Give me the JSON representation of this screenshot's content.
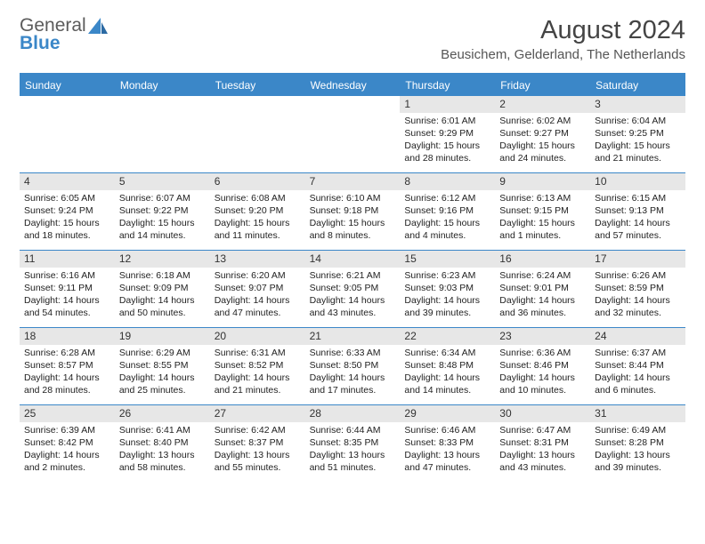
{
  "brand": {
    "text1": "General",
    "text2": "Blue"
  },
  "title": "August 2024",
  "location": "Beusichem, Gelderland, The Netherlands",
  "colors": {
    "accent": "#3b87c8",
    "grayBg": "#e7e7e7",
    "text": "#222222",
    "headerText": "#444444"
  },
  "dayNames": [
    "Sunday",
    "Monday",
    "Tuesday",
    "Wednesday",
    "Thursday",
    "Friday",
    "Saturday"
  ],
  "weeks": [
    [
      {
        "num": "",
        "sunrise": "",
        "sunset": "",
        "daylight": ""
      },
      {
        "num": "",
        "sunrise": "",
        "sunset": "",
        "daylight": ""
      },
      {
        "num": "",
        "sunrise": "",
        "sunset": "",
        "daylight": ""
      },
      {
        "num": "",
        "sunrise": "",
        "sunset": "",
        "daylight": ""
      },
      {
        "num": "1",
        "sunrise": "Sunrise: 6:01 AM",
        "sunset": "Sunset: 9:29 PM",
        "daylight": "Daylight: 15 hours and 28 minutes."
      },
      {
        "num": "2",
        "sunrise": "Sunrise: 6:02 AM",
        "sunset": "Sunset: 9:27 PM",
        "daylight": "Daylight: 15 hours and 24 minutes."
      },
      {
        "num": "3",
        "sunrise": "Sunrise: 6:04 AM",
        "sunset": "Sunset: 9:25 PM",
        "daylight": "Daylight: 15 hours and 21 minutes."
      }
    ],
    [
      {
        "num": "4",
        "sunrise": "Sunrise: 6:05 AM",
        "sunset": "Sunset: 9:24 PM",
        "daylight": "Daylight: 15 hours and 18 minutes."
      },
      {
        "num": "5",
        "sunrise": "Sunrise: 6:07 AM",
        "sunset": "Sunset: 9:22 PM",
        "daylight": "Daylight: 15 hours and 14 minutes."
      },
      {
        "num": "6",
        "sunrise": "Sunrise: 6:08 AM",
        "sunset": "Sunset: 9:20 PM",
        "daylight": "Daylight: 15 hours and 11 minutes."
      },
      {
        "num": "7",
        "sunrise": "Sunrise: 6:10 AM",
        "sunset": "Sunset: 9:18 PM",
        "daylight": "Daylight: 15 hours and 8 minutes."
      },
      {
        "num": "8",
        "sunrise": "Sunrise: 6:12 AM",
        "sunset": "Sunset: 9:16 PM",
        "daylight": "Daylight: 15 hours and 4 minutes."
      },
      {
        "num": "9",
        "sunrise": "Sunrise: 6:13 AM",
        "sunset": "Sunset: 9:15 PM",
        "daylight": "Daylight: 15 hours and 1 minutes."
      },
      {
        "num": "10",
        "sunrise": "Sunrise: 6:15 AM",
        "sunset": "Sunset: 9:13 PM",
        "daylight": "Daylight: 14 hours and 57 minutes."
      }
    ],
    [
      {
        "num": "11",
        "sunrise": "Sunrise: 6:16 AM",
        "sunset": "Sunset: 9:11 PM",
        "daylight": "Daylight: 14 hours and 54 minutes."
      },
      {
        "num": "12",
        "sunrise": "Sunrise: 6:18 AM",
        "sunset": "Sunset: 9:09 PM",
        "daylight": "Daylight: 14 hours and 50 minutes."
      },
      {
        "num": "13",
        "sunrise": "Sunrise: 6:20 AM",
        "sunset": "Sunset: 9:07 PM",
        "daylight": "Daylight: 14 hours and 47 minutes."
      },
      {
        "num": "14",
        "sunrise": "Sunrise: 6:21 AM",
        "sunset": "Sunset: 9:05 PM",
        "daylight": "Daylight: 14 hours and 43 minutes."
      },
      {
        "num": "15",
        "sunrise": "Sunrise: 6:23 AM",
        "sunset": "Sunset: 9:03 PM",
        "daylight": "Daylight: 14 hours and 39 minutes."
      },
      {
        "num": "16",
        "sunrise": "Sunrise: 6:24 AM",
        "sunset": "Sunset: 9:01 PM",
        "daylight": "Daylight: 14 hours and 36 minutes."
      },
      {
        "num": "17",
        "sunrise": "Sunrise: 6:26 AM",
        "sunset": "Sunset: 8:59 PM",
        "daylight": "Daylight: 14 hours and 32 minutes."
      }
    ],
    [
      {
        "num": "18",
        "sunrise": "Sunrise: 6:28 AM",
        "sunset": "Sunset: 8:57 PM",
        "daylight": "Daylight: 14 hours and 28 minutes."
      },
      {
        "num": "19",
        "sunrise": "Sunrise: 6:29 AM",
        "sunset": "Sunset: 8:55 PM",
        "daylight": "Daylight: 14 hours and 25 minutes."
      },
      {
        "num": "20",
        "sunrise": "Sunrise: 6:31 AM",
        "sunset": "Sunset: 8:52 PM",
        "daylight": "Daylight: 14 hours and 21 minutes."
      },
      {
        "num": "21",
        "sunrise": "Sunrise: 6:33 AM",
        "sunset": "Sunset: 8:50 PM",
        "daylight": "Daylight: 14 hours and 17 minutes."
      },
      {
        "num": "22",
        "sunrise": "Sunrise: 6:34 AM",
        "sunset": "Sunset: 8:48 PM",
        "daylight": "Daylight: 14 hours and 14 minutes."
      },
      {
        "num": "23",
        "sunrise": "Sunrise: 6:36 AM",
        "sunset": "Sunset: 8:46 PM",
        "daylight": "Daylight: 14 hours and 10 minutes."
      },
      {
        "num": "24",
        "sunrise": "Sunrise: 6:37 AM",
        "sunset": "Sunset: 8:44 PM",
        "daylight": "Daylight: 14 hours and 6 minutes."
      }
    ],
    [
      {
        "num": "25",
        "sunrise": "Sunrise: 6:39 AM",
        "sunset": "Sunset: 8:42 PM",
        "daylight": "Daylight: 14 hours and 2 minutes."
      },
      {
        "num": "26",
        "sunrise": "Sunrise: 6:41 AM",
        "sunset": "Sunset: 8:40 PM",
        "daylight": "Daylight: 13 hours and 58 minutes."
      },
      {
        "num": "27",
        "sunrise": "Sunrise: 6:42 AM",
        "sunset": "Sunset: 8:37 PM",
        "daylight": "Daylight: 13 hours and 55 minutes."
      },
      {
        "num": "28",
        "sunrise": "Sunrise: 6:44 AM",
        "sunset": "Sunset: 8:35 PM",
        "daylight": "Daylight: 13 hours and 51 minutes."
      },
      {
        "num": "29",
        "sunrise": "Sunrise: 6:46 AM",
        "sunset": "Sunset: 8:33 PM",
        "daylight": "Daylight: 13 hours and 47 minutes."
      },
      {
        "num": "30",
        "sunrise": "Sunrise: 6:47 AM",
        "sunset": "Sunset: 8:31 PM",
        "daylight": "Daylight: 13 hours and 43 minutes."
      },
      {
        "num": "31",
        "sunrise": "Sunrise: 6:49 AM",
        "sunset": "Sunset: 8:28 PM",
        "daylight": "Daylight: 13 hours and 39 minutes."
      }
    ]
  ]
}
